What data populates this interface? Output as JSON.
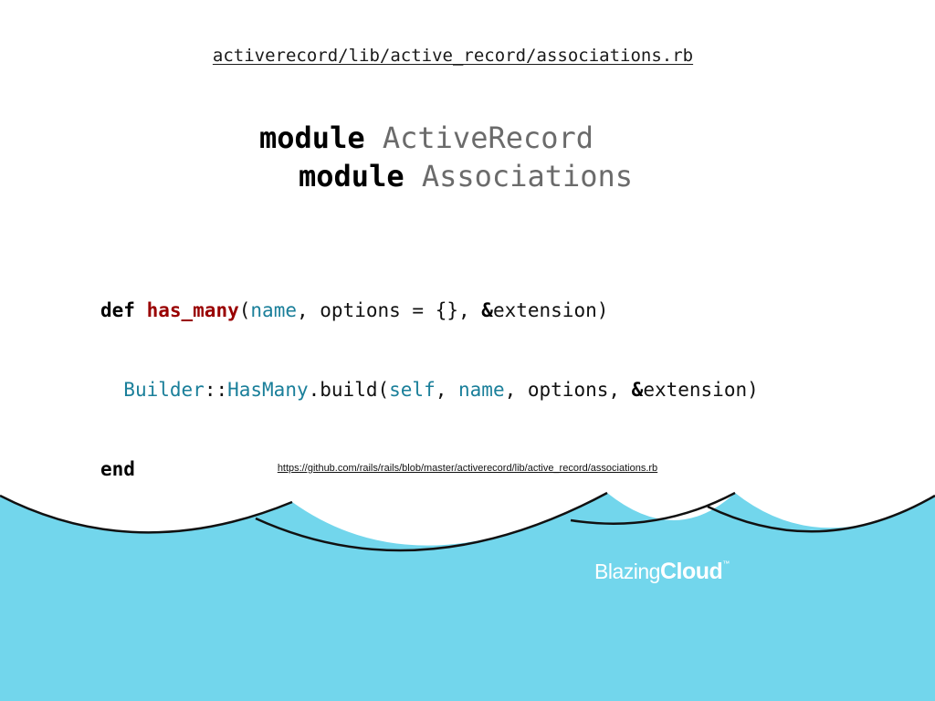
{
  "slide": {
    "file_path": "activerecord/lib/active_record/associations.rb",
    "module_lines": [
      {
        "keyword": "module",
        "name": "ActiveRecord"
      },
      {
        "keyword": "module",
        "name": "Associations"
      }
    ],
    "code": {
      "line1": {
        "def": "def",
        "method": "has_many",
        "open": "(",
        "arg_name": "name",
        "rest": ", options = {}, ",
        "amp": "&",
        "ext": "extension)"
      },
      "line2": {
        "indent": "  ",
        "builder": "Builder",
        "sep": "::",
        "has_many_const": "HasMany",
        "call": ".build(",
        "self_kw": "self",
        "comma1": ", ",
        "name_arg": "name",
        "rest": ", options, ",
        "amp": "&",
        "ext": "extension)"
      },
      "line3": {
        "end": "end"
      }
    },
    "source_url": "https://github.com/rails/rails/blob/master/activerecord/lib/active_record/associations.rb"
  },
  "branding": {
    "logo_part1": "Blazing",
    "logo_part2": "Cloud",
    "logo_tm": "™",
    "sea_color": "#72d6ec",
    "cloud_stroke": "#111111"
  }
}
